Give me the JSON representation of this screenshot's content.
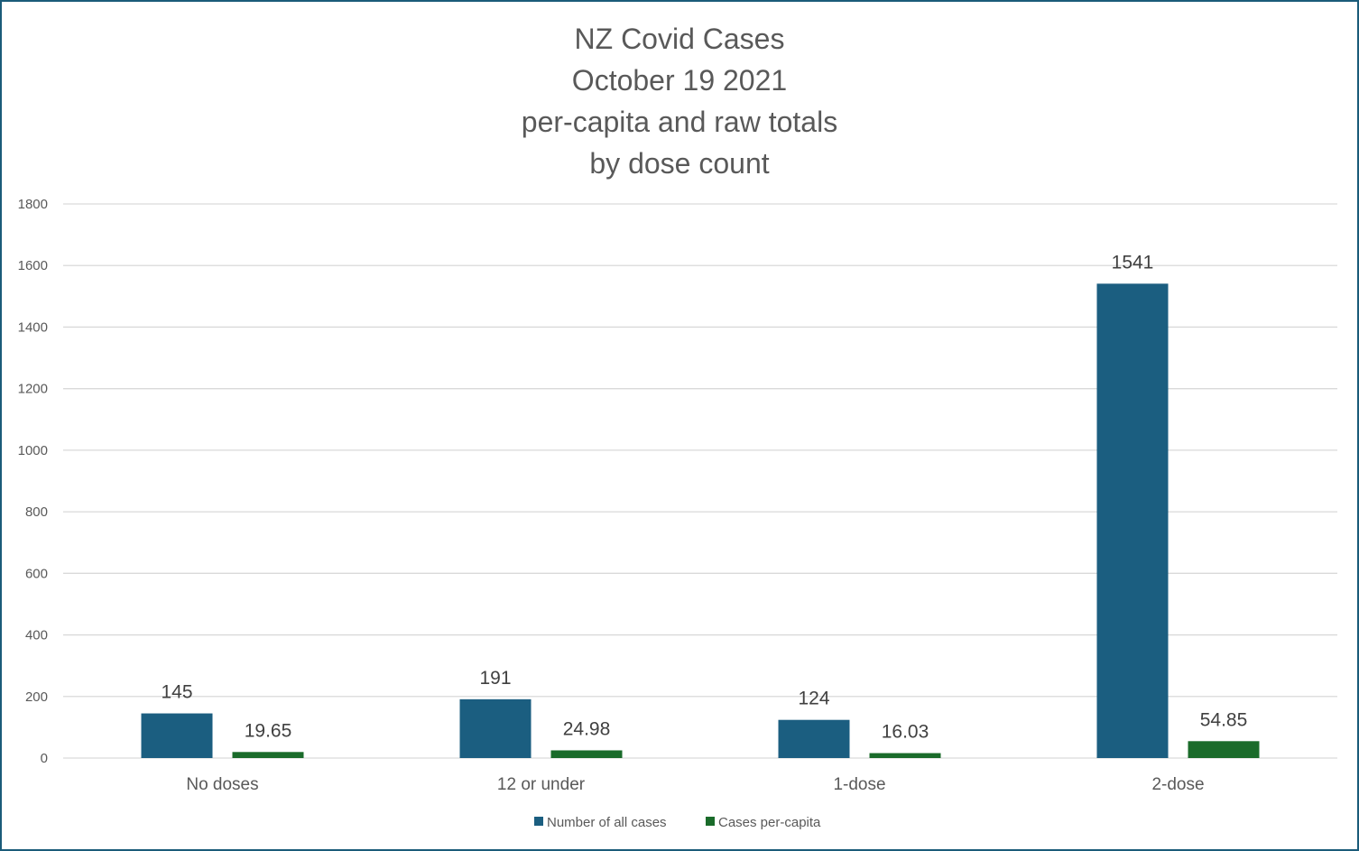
{
  "chart_data": {
    "type": "bar",
    "title_lines": [
      "NZ Covid Cases",
      "October 19 2021",
      "per-capita and raw totals",
      "by dose count"
    ],
    "categories": [
      "No doses",
      "12 or under",
      "1-dose",
      "2-dose"
    ],
    "series": [
      {
        "name": "Number of all cases",
        "values": [
          145,
          191,
          124,
          1541
        ],
        "labels": [
          "145",
          "191",
          "124",
          "1541"
        ],
        "color": "#1b5e80"
      },
      {
        "name": "Cases per-capita",
        "values": [
          19.65,
          24.98,
          16.03,
          54.85
        ],
        "labels": [
          "19.65",
          "24.98",
          "16.03",
          "54.85"
        ],
        "color": "#1a6b2a"
      }
    ],
    "yticks": [
      "0",
      "200",
      "400",
      "600",
      "800",
      "1000",
      "1200",
      "1400",
      "1600",
      "1800"
    ],
    "ylim": [
      0,
      1800
    ],
    "grid": true,
    "gridColor": "#d9d9d9",
    "legend": "bottom"
  }
}
